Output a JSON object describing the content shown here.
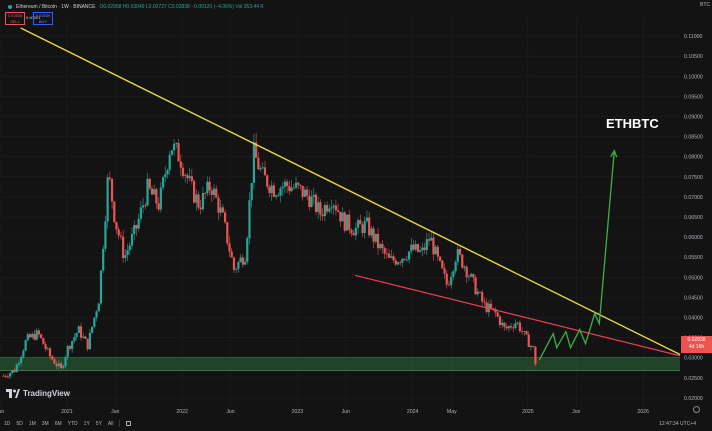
{
  "header": {
    "title": "Ethereum / Bitcoin · 1W · BINANCE",
    "ohlc": "O0.02958 H0.03049 L0.02727 C0.02838 −0.00120 (−4.06%) Vol 353.44 K",
    "sell_price": "0.02838",
    "sell_label": "SELL",
    "spread": "0.00001",
    "buy_price": "0.02839",
    "buy_label": "BUY",
    "currency": "BTC"
  },
  "price_badge": {
    "price": "0.02838",
    "countdown": "4d 16h"
  },
  "annotation": "ETHBTC",
  "logo_text": "TradingView",
  "bottom_bar": {
    "ranges": [
      "1D",
      "5D",
      "1M",
      "3M",
      "6M",
      "YTD",
      "1Y",
      "5Y",
      "All"
    ],
    "clock": "12:47:34 UTC+4"
  },
  "colors": {
    "up": "#26a69a",
    "down": "#ef5350",
    "resistance": "#e8d545",
    "support": "#f03b5a",
    "projection": "#3cb043",
    "zone": "#2e6b3a",
    "annotation": "#ffffff"
  },
  "chart_data": {
    "type": "candlestick",
    "symbol": "ETHBTC",
    "interval": "1W",
    "exchange": "BINANCE",
    "y_axis": {
      "ylim": [
        0.0175,
        0.1145
      ],
      "ticks": [
        "0.11000",
        "0.10500",
        "0.10000",
        "0.09500",
        "0.09000",
        "0.08500",
        "0.08000",
        "0.07500",
        "0.07000",
        "0.06500",
        "0.06000",
        "0.05500",
        "0.05000",
        "0.04500",
        "0.04000",
        "0.03500",
        "0.03000",
        "0.02500",
        "0.02000"
      ]
    },
    "x_axis": {
      "ticks": [
        {
          "label": "Jun",
          "x": 2020.42
        },
        {
          "label": "2021",
          "x": 2021.0
        },
        {
          "label": "Jun",
          "x": 2021.42
        },
        {
          "label": "2022",
          "x": 2022.0
        },
        {
          "label": "Jun",
          "x": 2022.42
        },
        {
          "label": "2023",
          "x": 2023.0
        },
        {
          "label": "Jun",
          "x": 2023.42
        },
        {
          "label": "2024",
          "x": 2024.0
        },
        {
          "label": "May",
          "x": 2024.34
        },
        {
          "label": "2025",
          "x": 2025.0
        },
        {
          "label": "Jun",
          "x": 2025.42
        },
        {
          "label": "2026",
          "x": 2026.0
        }
      ],
      "xlim": [
        2020.42,
        2026.32
      ]
    },
    "close_path": [
      [
        2020.45,
        0.0255
      ],
      [
        2020.55,
        0.027
      ],
      [
        2020.65,
        0.0345
      ],
      [
        2020.75,
        0.036
      ],
      [
        2020.85,
        0.0305
      ],
      [
        2020.95,
        0.027
      ],
      [
        2021.0,
        0.032
      ],
      [
        2021.1,
        0.037
      ],
      [
        2021.18,
        0.033
      ],
      [
        2021.28,
        0.045
      ],
      [
        2021.36,
        0.076
      ],
      [
        2021.42,
        0.064
      ],
      [
        2021.5,
        0.055
      ],
      [
        2021.6,
        0.062
      ],
      [
        2021.7,
        0.072
      ],
      [
        2021.8,
        0.068
      ],
      [
        2021.9,
        0.083
      ],
      [
        2021.98,
        0.08
      ],
      [
        2022.08,
        0.072
      ],
      [
        2022.15,
        0.068
      ],
      [
        2022.25,
        0.073
      ],
      [
        2022.35,
        0.065
      ],
      [
        2022.45,
        0.052
      ],
      [
        2022.55,
        0.056
      ],
      [
        2022.62,
        0.081
      ],
      [
        2022.7,
        0.075
      ],
      [
        2022.8,
        0.072
      ],
      [
        2022.9,
        0.073
      ],
      [
        2023.0,
        0.072
      ],
      [
        2023.1,
        0.07
      ],
      [
        2023.2,
        0.066
      ],
      [
        2023.3,
        0.07
      ],
      [
        2023.4,
        0.064
      ],
      [
        2023.5,
        0.062
      ],
      [
        2023.6,
        0.063
      ],
      [
        2023.7,
        0.058
      ],
      [
        2023.8,
        0.054
      ],
      [
        2023.9,
        0.055
      ],
      [
        2024.0,
        0.057
      ],
      [
        2024.08,
        0.056
      ],
      [
        2024.15,
        0.06
      ],
      [
        2024.22,
        0.054
      ],
      [
        2024.3,
        0.048
      ],
      [
        2024.38,
        0.056
      ],
      [
        2024.45,
        0.053
      ],
      [
        2024.55,
        0.047
      ],
      [
        2024.62,
        0.043
      ],
      [
        2024.72,
        0.041
      ],
      [
        2024.8,
        0.037
      ],
      [
        2024.9,
        0.039
      ],
      [
        2024.98,
        0.035
      ],
      [
        2025.05,
        0.032
      ],
      [
        2025.08,
        0.02838
      ]
    ],
    "last_close": 0.02838,
    "overlays": {
      "resistance_line": {
        "from": [
          2020.6,
          0.112
        ],
        "to": [
          2026.32,
          0.0308
        ]
      },
      "support_line": {
        "from": [
          2023.5,
          0.0505
        ],
        "to": [
          2026.32,
          0.0305
        ]
      },
      "support_zone": [
        0.0268,
        0.03
      ],
      "projection_path": [
        [
          2025.1,
          0.0295
        ],
        [
          2025.22,
          0.036
        ],
        [
          2025.25,
          0.0325
        ],
        [
          2025.33,
          0.0365
        ],
        [
          2025.37,
          0.0325
        ],
        [
          2025.45,
          0.037
        ],
        [
          2025.5,
          0.0335
        ],
        [
          2025.58,
          0.041
        ],
        [
          2025.62,
          0.0385
        ],
        [
          2025.75,
          0.0815
        ]
      ]
    }
  }
}
